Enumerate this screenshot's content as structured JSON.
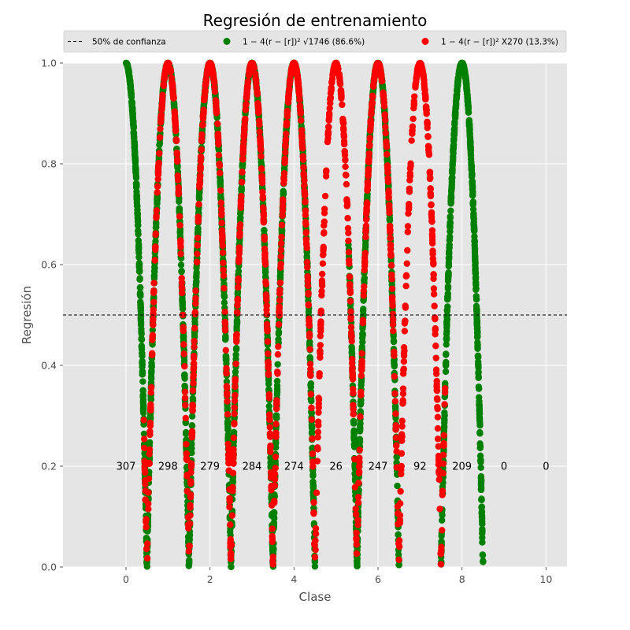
{
  "chart_data": {
    "type": "scatter",
    "title": "Regresión de entrenamiento",
    "xlabel": "Clase",
    "ylabel": "Regresión",
    "xlim": [
      -1.5,
      10.5
    ],
    "ylim": [
      0.0,
      1.0
    ],
    "x_ticks": [
      0,
      2,
      4,
      6,
      8,
      10
    ],
    "y_ticks": [
      0.0,
      0.2,
      0.4,
      0.6,
      0.8,
      1.0
    ],
    "grid": true,
    "style": "ggplot",
    "legend_position": "top",
    "reference_line": {
      "label": "50% de confianza",
      "y": 0.5,
      "style": "dashed",
      "color": "#000000"
    },
    "series": [
      {
        "name": "1 − 4(r − [r])² √1746 (86.6%)",
        "color": "#008000"
      },
      {
        "name": "1 − 4(r − [r])² X270 (13.3%)",
        "color": "#ff0000"
      }
    ],
    "class_counts": [
      {
        "x": 0,
        "label": "307"
      },
      {
        "x": 1,
        "label": "298"
      },
      {
        "x": 2,
        "label": "279"
      },
      {
        "x": 3,
        "label": "284"
      },
      {
        "x": 4,
        "label": "274"
      },
      {
        "x": 5,
        "label": "26"
      },
      {
        "x": 6,
        "label": "247"
      },
      {
        "x": 7,
        "label": "92"
      },
      {
        "x": 8,
        "label": "209"
      },
      {
        "x": 9,
        "label": "0"
      },
      {
        "x": 10,
        "label": "0"
      }
    ],
    "count_label_y": 0.2,
    "points_by_class": [
      {
        "class": 0,
        "green_x_range": [
          0.0,
          0.5
        ],
        "red_x_range": [
          0.42,
          0.55
        ]
      },
      {
        "class": 1,
        "green_x_range": [
          0.5,
          1.5
        ],
        "red_x_range": [
          0.5,
          1.45
        ]
      },
      {
        "class": 2,
        "green_x_range": [
          1.5,
          2.5
        ],
        "red_x_range": [
          1.45,
          2.55
        ]
      },
      {
        "class": 3,
        "green_x_range": [
          2.5,
          3.5
        ],
        "red_x_range": [
          2.55,
          3.5
        ]
      },
      {
        "class": 4,
        "green_x_range": [
          3.5,
          4.5
        ],
        "red_x_range": [
          3.5,
          4.6
        ]
      },
      {
        "class": 5,
        "green_x_range": [
          5.3,
          5.6
        ],
        "red_x_range": [
          4.5,
          5.5
        ]
      },
      {
        "class": 6,
        "green_x_range": [
          5.5,
          6.5
        ],
        "red_x_range": [
          5.5,
          6.7
        ]
      },
      {
        "class": 7,
        "green_x_range": [
          7.5,
          7.6
        ],
        "red_x_range": [
          6.6,
          7.5
        ]
      },
      {
        "class": 8,
        "green_x_range": [
          7.5,
          8.5
        ],
        "red_x_range": [
          7.35,
          7.6
        ]
      }
    ]
  }
}
